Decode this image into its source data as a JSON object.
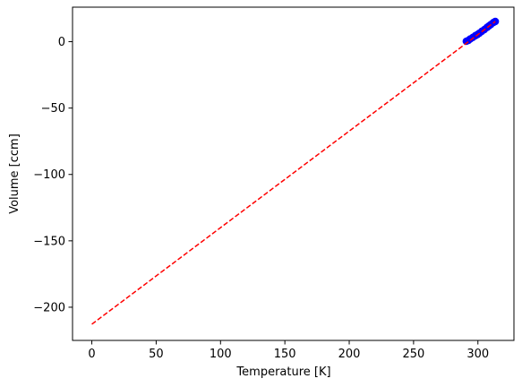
{
  "chart_data": {
    "type": "scatter",
    "title": "",
    "xlabel": "Temperature [K]",
    "ylabel": "Volume [ccm]",
    "xlim": [
      -15,
      328
    ],
    "ylim": [
      -225,
      26
    ],
    "x_ticks": [
      0,
      50,
      100,
      150,
      200,
      250,
      300
    ],
    "y_ticks": [
      0,
      -50,
      -100,
      -150,
      -200
    ],
    "x_tick_labels": [
      "0",
      "50",
      "100",
      "150",
      "200",
      "250",
      "300"
    ],
    "y_tick_labels": [
      "0",
      "−50",
      "−100",
      "−150",
      "−200"
    ],
    "grid": false,
    "legend": "none",
    "series": [
      {
        "kind": "scatter",
        "color": "#0000ff",
        "x": [
          291,
          292.5,
          294,
          296,
          298,
          299.5,
          301,
          303,
          305,
          307,
          308.5,
          310,
          312,
          313.5
        ],
        "y": [
          0.3,
          0.9,
          2.0,
          3.2,
          4.5,
          5.3,
          6.3,
          7.8,
          9.1,
          10.7,
          11.8,
          12.9,
          14.4,
          15.2
        ]
      },
      {
        "kind": "line",
        "style": "dashed",
        "color": "#ff0000",
        "x": [
          0,
          313.5
        ],
        "y": [
          -212.8,
          15.2
        ]
      }
    ]
  }
}
